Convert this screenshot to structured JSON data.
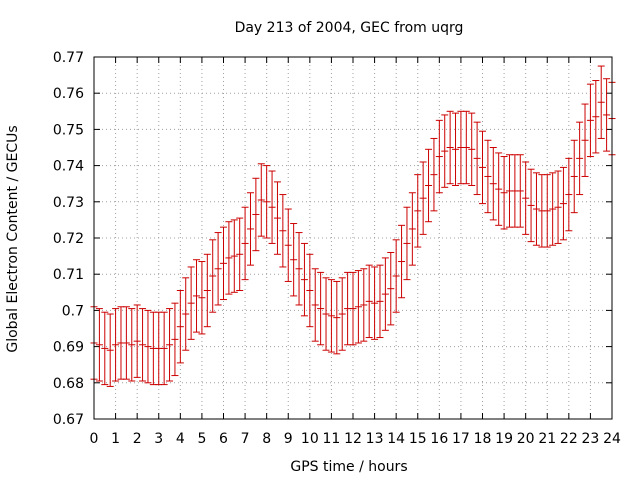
{
  "chart_data": {
    "type": "line",
    "title": "Day 213 of 2004, GEC from uqrg",
    "xlabel": "GPS time / hours",
    "ylabel": "Global Electron Content / GECUs",
    "xlim": [
      0,
      24
    ],
    "ylim": [
      0.67,
      0.77
    ],
    "grid": true,
    "series_color": "#cc0000",
    "xticks": [
      "0",
      "1",
      "2",
      "3",
      "4",
      "5",
      "6",
      "7",
      "8",
      "9",
      "10",
      "11",
      "12",
      "13",
      "14",
      "15",
      "16",
      "17",
      "18",
      "19",
      "20",
      "21",
      "22",
      "23",
      "24"
    ],
    "yticks": [
      "0.67",
      "0.68",
      "0.69",
      "0.7",
      "0.71",
      "0.72",
      "0.73",
      "0.74",
      "0.75",
      "0.76",
      "0.77"
    ],
    "error": 0.01,
    "series": [
      {
        "name": "GEC",
        "x": [
          0.0,
          0.25,
          0.5,
          0.75,
          1.0,
          1.25,
          1.5,
          1.75,
          2.0,
          2.25,
          2.5,
          2.75,
          3.0,
          3.25,
          3.5,
          3.75,
          4.0,
          4.25,
          4.5,
          4.75,
          5.0,
          5.25,
          5.5,
          5.75,
          6.0,
          6.25,
          6.5,
          6.75,
          7.0,
          7.25,
          7.5,
          7.75,
          8.0,
          8.25,
          8.5,
          8.75,
          9.0,
          9.25,
          9.5,
          9.75,
          10.0,
          10.25,
          10.5,
          10.75,
          11.0,
          11.25,
          11.5,
          11.75,
          12.0,
          12.25,
          12.5,
          12.75,
          13.0,
          13.25,
          13.5,
          13.75,
          14.0,
          14.25,
          14.5,
          14.75,
          15.0,
          15.25,
          15.5,
          15.75,
          16.0,
          16.25,
          16.5,
          16.75,
          17.0,
          17.25,
          17.5,
          17.75,
          18.0,
          18.25,
          18.5,
          18.75,
          19.0,
          19.25,
          19.5,
          19.75,
          20.0,
          20.25,
          20.5,
          20.75,
          21.0,
          21.25,
          21.5,
          21.75,
          22.0,
          22.25,
          22.5,
          22.75,
          23.0,
          23.25,
          23.5,
          23.75,
          24.0
        ],
        "values": [
          0.691,
          0.6905,
          0.6895,
          0.689,
          0.6905,
          0.691,
          0.691,
          0.6905,
          0.6915,
          0.6905,
          0.69,
          0.6895,
          0.6895,
          0.6895,
          0.6905,
          0.692,
          0.6955,
          0.699,
          0.702,
          0.704,
          0.7035,
          0.7055,
          0.7095,
          0.7115,
          0.713,
          0.7145,
          0.715,
          0.7155,
          0.7185,
          0.7225,
          0.7265,
          0.7305,
          0.73,
          0.7285,
          0.7255,
          0.722,
          0.718,
          0.714,
          0.7115,
          0.7085,
          0.7055,
          0.7015,
          0.7005,
          0.699,
          0.6985,
          0.698,
          0.699,
          0.7005,
          0.7005,
          0.701,
          0.7015,
          0.7025,
          0.702,
          0.7025,
          0.7045,
          0.706,
          0.7095,
          0.7135,
          0.7185,
          0.7225,
          0.7275,
          0.731,
          0.7345,
          0.7375,
          0.7425,
          0.744,
          0.745,
          0.7445,
          0.745,
          0.745,
          0.7445,
          0.742,
          0.7395,
          0.737,
          0.735,
          0.7335,
          0.7325,
          0.733,
          0.733,
          0.733,
          0.731,
          0.729,
          0.728,
          0.7275,
          0.7275,
          0.728,
          0.7285,
          0.7295,
          0.732,
          0.737,
          0.742,
          0.747,
          0.7525,
          0.7535,
          0.7575,
          0.754,
          0.753
        ]
      }
    ]
  }
}
